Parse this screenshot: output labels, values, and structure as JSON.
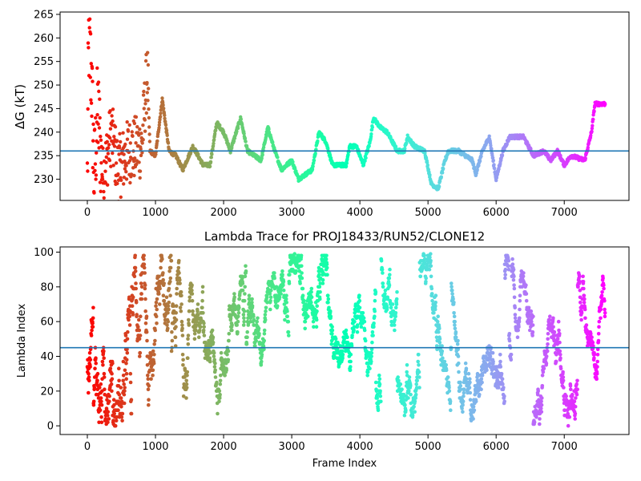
{
  "chart_data": [
    {
      "type": "scatter",
      "title": "",
      "xlabel": "",
      "ylabel": "ΔG (kT)",
      "xlim": [
        -400,
        7950
      ],
      "ylim": [
        225.5,
        265.5
      ],
      "xticks": [
        0,
        1000,
        2000,
        3000,
        4000,
        5000,
        6000,
        7000
      ],
      "yticks": [
        230,
        235,
        240,
        245,
        250,
        255,
        260,
        265
      ],
      "colormap": "rainbow (red at start to violet at end)",
      "reference_line": {
        "y": 236,
        "color": "#1f77b4"
      },
      "key_points": [
        [
          0,
          230
        ],
        [
          20,
          260
        ],
        [
          60,
          252
        ],
        [
          100,
          230
        ],
        [
          150,
          245
        ],
        [
          230,
          230
        ],
        [
          350,
          240
        ],
        [
          450,
          232
        ],
        [
          600,
          236
        ],
        [
          800,
          237
        ],
        [
          880,
          253
        ],
        [
          920,
          236
        ],
        [
          1000,
          235
        ],
        [
          1100,
          247
        ],
        [
          1200,
          236
        ],
        [
          1300,
          235
        ],
        [
          1400,
          232
        ],
        [
          1550,
          237
        ],
        [
          1700,
          233
        ],
        [
          1800,
          233
        ],
        [
          1900,
          242
        ],
        [
          2000,
          240
        ],
        [
          2100,
          236
        ],
        [
          2250,
          243
        ],
        [
          2350,
          236
        ],
        [
          2550,
          234
        ],
        [
          2650,
          241
        ],
        [
          2750,
          236
        ],
        [
          2850,
          232
        ],
        [
          3000,
          234
        ],
        [
          3100,
          230
        ],
        [
          3200,
          231
        ],
        [
          3300,
          232
        ],
        [
          3400,
          240
        ],
        [
          3500,
          238
        ],
        [
          3600,
          233
        ],
        [
          3800,
          233
        ],
        [
          3850,
          237
        ],
        [
          3950,
          237
        ],
        [
          4050,
          233
        ],
        [
          4150,
          238
        ],
        [
          4200,
          243
        ],
        [
          4300,
          241
        ],
        [
          4400,
          240
        ],
        [
          4550,
          236
        ],
        [
          4650,
          236
        ],
        [
          4700,
          239
        ],
        [
          4800,
          237
        ],
        [
          4950,
          236
        ],
        [
          5050,
          229
        ],
        [
          5150,
          228
        ],
        [
          5250,
          234
        ],
        [
          5300,
          236
        ],
        [
          5450,
          236
        ],
        [
          5650,
          234
        ],
        [
          5700,
          231
        ],
        [
          5800,
          236
        ],
        [
          5900,
          239
        ],
        [
          6000,
          230
        ],
        [
          6100,
          236
        ],
        [
          6200,
          239
        ],
        [
          6400,
          239
        ],
        [
          6550,
          235
        ],
        [
          6700,
          236
        ],
        [
          6800,
          234
        ],
        [
          6900,
          236
        ],
        [
          7000,
          233
        ],
        [
          7100,
          235
        ],
        [
          7300,
          234
        ],
        [
          7400,
          240
        ],
        [
          7450,
          246
        ],
        [
          7600,
          246
        ]
      ]
    },
    {
      "type": "scatter",
      "title": "Lambda Trace for PROJ18433/RUN52/CLONE12",
      "xlabel": "Frame Index",
      "ylabel": "Lambda Index",
      "xlim": [
        -400,
        7950
      ],
      "ylim": [
        -5,
        103
      ],
      "xticks": [
        0,
        1000,
        2000,
        3000,
        4000,
        5000,
        6000,
        7000
      ],
      "yticks": [
        0,
        20,
        40,
        60,
        80,
        100
      ],
      "colormap": "rainbow (red at start to violet at end)",
      "reference_line": {
        "y": 45,
        "color": "#1f77b4"
      },
      "value_range": [
        0,
        99
      ],
      "frame_range": [
        0,
        7600
      ]
    }
  ]
}
